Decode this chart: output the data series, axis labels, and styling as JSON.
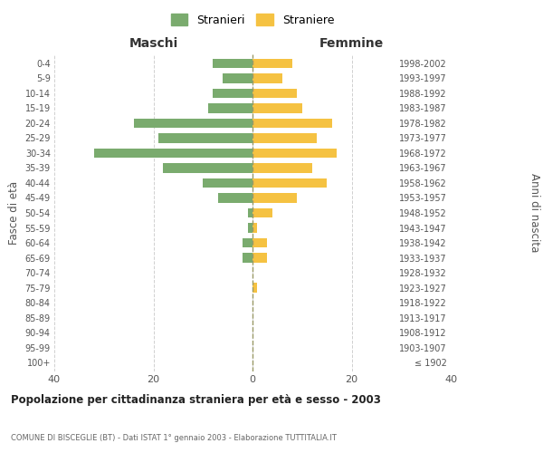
{
  "age_groups": [
    "100+",
    "95-99",
    "90-94",
    "85-89",
    "80-84",
    "75-79",
    "70-74",
    "65-69",
    "60-64",
    "55-59",
    "50-54",
    "45-49",
    "40-44",
    "35-39",
    "30-34",
    "25-29",
    "20-24",
    "15-19",
    "10-14",
    "5-9",
    "0-4"
  ],
  "birth_years": [
    "≤ 1902",
    "1903-1907",
    "1908-1912",
    "1913-1917",
    "1918-1922",
    "1923-1927",
    "1928-1932",
    "1933-1937",
    "1938-1942",
    "1943-1947",
    "1948-1952",
    "1953-1957",
    "1958-1962",
    "1963-1967",
    "1968-1972",
    "1973-1977",
    "1978-1982",
    "1983-1987",
    "1988-1992",
    "1993-1997",
    "1998-2002"
  ],
  "maschi": [
    0,
    0,
    0,
    0,
    0,
    0,
    0,
    2,
    2,
    1,
    1,
    7,
    10,
    18,
    32,
    19,
    24,
    9,
    8,
    6,
    8
  ],
  "femmine": [
    0,
    0,
    0,
    0,
    0,
    1,
    0,
    3,
    3,
    1,
    4,
    9,
    15,
    12,
    17,
    13,
    16,
    10,
    9,
    6,
    8
  ],
  "color_maschi": "#7aab6e",
  "color_femmine": "#f5c242",
  "title_main": "Popolazione per cittadinanza straniera per età e sesso - 2003",
  "title_sub": "COMUNE DI BISCEGLIE (BT) - Dati ISTAT 1° gennaio 2003 - Elaborazione TUTTITALIA.IT",
  "legend_maschi": "Stranieri",
  "legend_femmine": "Straniere",
  "xlim": 40,
  "xlabel_left": "Maschi",
  "xlabel_right": "Femmine",
  "ylabel_left": "Fasce di età",
  "ylabel_right": "Anni di nascita",
  "background_color": "#ffffff",
  "grid_color": "#d0d0d0"
}
